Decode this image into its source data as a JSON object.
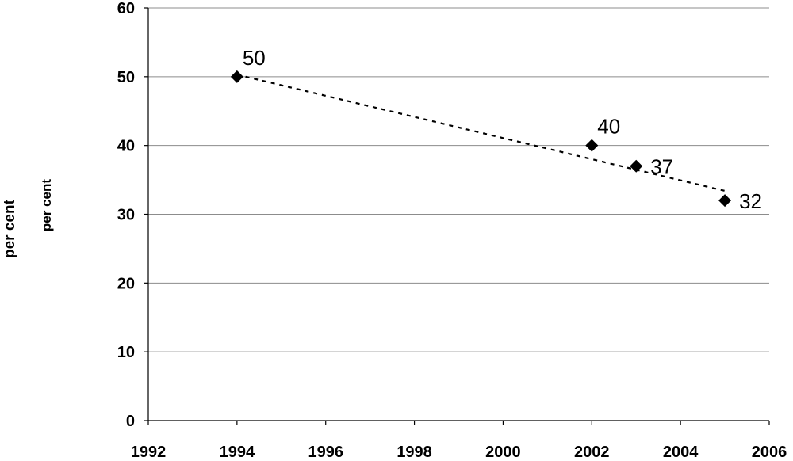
{
  "chart_data": {
    "type": "scatter",
    "title": "",
    "xlabel": "",
    "ylabel": "per cent",
    "ylabel_secondary": "per cent",
    "xlim": [
      1992,
      2006
    ],
    "ylim": [
      0,
      60
    ],
    "x_ticks": [
      "1992",
      "1994",
      "1996",
      "1998",
      "2000",
      "2002",
      "2004",
      "2006"
    ],
    "y_ticks": [
      "0",
      "10",
      "20",
      "30",
      "40",
      "50",
      "60"
    ],
    "grid": "horizontal",
    "legend": "none",
    "series": [
      {
        "points": [
          {
            "x": 1994,
            "y": 50,
            "label": "50"
          },
          {
            "x": 2002,
            "y": 40,
            "label": "40"
          },
          {
            "x": 2003,
            "y": 37,
            "label": "37"
          },
          {
            "x": 2005,
            "y": 32,
            "label": "32"
          }
        ],
        "marker": "diamond",
        "color": "#000000"
      }
    ],
    "trendline": {
      "style": "dotted",
      "from": {
        "x": 1994,
        "y": 50.3
      },
      "to": {
        "x": 2005,
        "y": 33.4
      },
      "color": "#000000"
    }
  }
}
